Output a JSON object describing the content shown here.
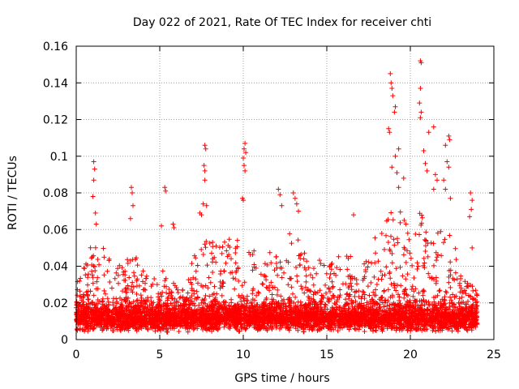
{
  "chart_data": {
    "type": "scatter",
    "title": "Day 022 of 2021, Rate Of TEC Index for receiver chti",
    "xlabel": "GPS time / hours",
    "ylabel": "ROTI / TECUs",
    "xlim": [
      0,
      25
    ],
    "ylim": [
      0,
      0.16
    ],
    "xticks": [
      "0",
      "5",
      "10",
      "15",
      "20",
      "25"
    ],
    "yticks": [
      "0",
      "0.02",
      "0.04",
      "0.06",
      "0.08",
      "0.1",
      "0.12",
      "0.14",
      "0.16"
    ],
    "grid": true,
    "marker": "+",
    "color": "#ff0000",
    "x_range_of_data": [
      0,
      24
    ],
    "baseline_roti_typical": 0.012,
    "peaks": [
      {
        "x": 1.05,
        "y": 0.097
      },
      {
        "x": 1.1,
        "y": 0.093
      },
      {
        "x": 1.05,
        "y": 0.087
      },
      {
        "x": 1.0,
        "y": 0.078
      },
      {
        "x": 1.15,
        "y": 0.069
      },
      {
        "x": 1.2,
        "y": 0.063
      },
      {
        "x": 3.3,
        "y": 0.083
      },
      {
        "x": 3.35,
        "y": 0.08
      },
      {
        "x": 3.4,
        "y": 0.073
      },
      {
        "x": 3.25,
        "y": 0.066
      },
      {
        "x": 5.3,
        "y": 0.083
      },
      {
        "x": 5.35,
        "y": 0.081
      },
      {
        "x": 5.1,
        "y": 0.062
      },
      {
        "x": 5.8,
        "y": 0.063
      },
      {
        "x": 5.85,
        "y": 0.061
      },
      {
        "x": 7.7,
        "y": 0.106
      },
      {
        "x": 7.75,
        "y": 0.104
      },
      {
        "x": 7.65,
        "y": 0.095
      },
      {
        "x": 7.7,
        "y": 0.092
      },
      {
        "x": 7.7,
        "y": 0.087
      },
      {
        "x": 7.6,
        "y": 0.074
      },
      {
        "x": 7.8,
        "y": 0.073
      },
      {
        "x": 7.4,
        "y": 0.069
      },
      {
        "x": 7.5,
        "y": 0.068
      },
      {
        "x": 10.1,
        "y": 0.107
      },
      {
        "x": 10.05,
        "y": 0.104
      },
      {
        "x": 10.15,
        "y": 0.102
      },
      {
        "x": 10.0,
        "y": 0.099
      },
      {
        "x": 10.05,
        "y": 0.095
      },
      {
        "x": 10.1,
        "y": 0.092
      },
      {
        "x": 9.95,
        "y": 0.077
      },
      {
        "x": 10.0,
        "y": 0.076
      },
      {
        "x": 12.1,
        "y": 0.082
      },
      {
        "x": 12.2,
        "y": 0.079
      },
      {
        "x": 12.3,
        "y": 0.073
      },
      {
        "x": 13.0,
        "y": 0.08
      },
      {
        "x": 13.1,
        "y": 0.077
      },
      {
        "x": 13.2,
        "y": 0.074
      },
      {
        "x": 13.3,
        "y": 0.07
      },
      {
        "x": 16.6,
        "y": 0.068
      },
      {
        "x": 18.8,
        "y": 0.145
      },
      {
        "x": 18.85,
        "y": 0.14
      },
      {
        "x": 18.9,
        "y": 0.137
      },
      {
        "x": 18.95,
        "y": 0.133
      },
      {
        "x": 19.1,
        "y": 0.127
      },
      {
        "x": 19.05,
        "y": 0.124
      },
      {
        "x": 18.7,
        "y": 0.115
      },
      {
        "x": 18.75,
        "y": 0.113
      },
      {
        "x": 19.3,
        "y": 0.104
      },
      {
        "x": 19.1,
        "y": 0.1
      },
      {
        "x": 18.9,
        "y": 0.094
      },
      {
        "x": 19.2,
        "y": 0.091
      },
      {
        "x": 19.6,
        "y": 0.088
      },
      {
        "x": 19.3,
        "y": 0.083
      },
      {
        "x": 20.6,
        "y": 0.152
      },
      {
        "x": 20.65,
        "y": 0.151
      },
      {
        "x": 20.6,
        "y": 0.137
      },
      {
        "x": 20.55,
        "y": 0.129
      },
      {
        "x": 20.65,
        "y": 0.124
      },
      {
        "x": 20.6,
        "y": 0.121
      },
      {
        "x": 21.4,
        "y": 0.116
      },
      {
        "x": 21.1,
        "y": 0.113
      },
      {
        "x": 20.8,
        "y": 0.103
      },
      {
        "x": 20.9,
        "y": 0.096
      },
      {
        "x": 21.0,
        "y": 0.092
      },
      {
        "x": 21.5,
        "y": 0.09
      },
      {
        "x": 21.6,
        "y": 0.087
      },
      {
        "x": 21.4,
        "y": 0.082
      },
      {
        "x": 22.1,
        "y": 0.106
      },
      {
        "x": 22.3,
        "y": 0.111
      },
      {
        "x": 22.35,
        "y": 0.109
      },
      {
        "x": 22.2,
        "y": 0.097
      },
      {
        "x": 22.3,
        "y": 0.094
      },
      {
        "x": 22.0,
        "y": 0.087
      },
      {
        "x": 22.1,
        "y": 0.082
      },
      {
        "x": 22.4,
        "y": 0.077
      },
      {
        "x": 23.6,
        "y": 0.08
      },
      {
        "x": 23.7,
        "y": 0.076
      },
      {
        "x": 23.65,
        "y": 0.071
      },
      {
        "x": 23.55,
        "y": 0.067
      },
      {
        "x": 23.7,
        "y": 0.05
      }
    ],
    "activity_envelope": [
      {
        "x": 0.0,
        "y": 0.032
      },
      {
        "x": 0.5,
        "y": 0.04
      },
      {
        "x": 0.8,
        "y": 0.055
      },
      {
        "x": 1.2,
        "y": 0.05
      },
      {
        "x": 1.8,
        "y": 0.05
      },
      {
        "x": 2.5,
        "y": 0.04
      },
      {
        "x": 3.0,
        "y": 0.045
      },
      {
        "x": 3.5,
        "y": 0.046
      },
      {
        "x": 4.0,
        "y": 0.04
      },
      {
        "x": 4.5,
        "y": 0.036
      },
      {
        "x": 5.0,
        "y": 0.04
      },
      {
        "x": 5.5,
        "y": 0.035
      },
      {
        "x": 6.0,
        "y": 0.03
      },
      {
        "x": 6.5,
        "y": 0.027
      },
      {
        "x": 7.0,
        "y": 0.045
      },
      {
        "x": 7.5,
        "y": 0.055
      },
      {
        "x": 8.0,
        "y": 0.055
      },
      {
        "x": 8.5,
        "y": 0.05
      },
      {
        "x": 9.0,
        "y": 0.058
      },
      {
        "x": 9.5,
        "y": 0.058
      },
      {
        "x": 10.0,
        "y": 0.055
      },
      {
        "x": 10.5,
        "y": 0.05
      },
      {
        "x": 11.0,
        "y": 0.045
      },
      {
        "x": 11.5,
        "y": 0.045
      },
      {
        "x": 12.0,
        "y": 0.058
      },
      {
        "x": 12.5,
        "y": 0.055
      },
      {
        "x": 13.0,
        "y": 0.06
      },
      {
        "x": 13.5,
        "y": 0.055
      },
      {
        "x": 14.0,
        "y": 0.04
      },
      {
        "x": 14.5,
        "y": 0.045
      },
      {
        "x": 15.0,
        "y": 0.04
      },
      {
        "x": 15.5,
        "y": 0.045
      },
      {
        "x": 16.0,
        "y": 0.05
      },
      {
        "x": 16.5,
        "y": 0.045
      },
      {
        "x": 17.0,
        "y": 0.04
      },
      {
        "x": 17.5,
        "y": 0.045
      },
      {
        "x": 18.0,
        "y": 0.06
      },
      {
        "x": 18.5,
        "y": 0.07
      },
      {
        "x": 19.0,
        "y": 0.075
      },
      {
        "x": 19.5,
        "y": 0.07
      },
      {
        "x": 20.0,
        "y": 0.065
      },
      {
        "x": 20.5,
        "y": 0.07
      },
      {
        "x": 21.0,
        "y": 0.07
      },
      {
        "x": 21.5,
        "y": 0.06
      },
      {
        "x": 22.0,
        "y": 0.06
      },
      {
        "x": 22.5,
        "y": 0.06
      },
      {
        "x": 23.0,
        "y": 0.035
      },
      {
        "x": 23.5,
        "y": 0.03
      },
      {
        "x": 24.0,
        "y": 0.03
      }
    ]
  }
}
